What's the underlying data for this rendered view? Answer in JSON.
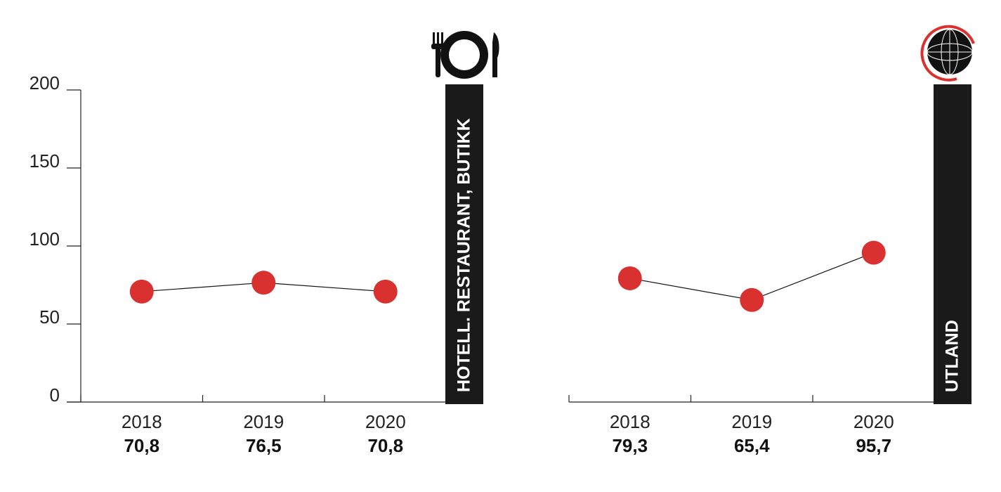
{
  "chart_data": [
    {
      "type": "line",
      "title": "HOTELL. RESTAURANT, BUTIKK",
      "categories": [
        "2018",
        "2019",
        "2020"
      ],
      "values": [
        70.8,
        76.5,
        70.8
      ],
      "value_labels": [
        "70,8",
        "76,5",
        "70,8"
      ],
      "color": "#d93030",
      "ylim": [
        0,
        200
      ],
      "yticks": [
        0,
        50,
        100,
        150,
        200
      ]
    },
    {
      "type": "line",
      "title": "UTLAND",
      "categories": [
        "2018",
        "2019",
        "2020"
      ],
      "values": [
        79.3,
        65.4,
        95.7
      ],
      "value_labels": [
        "79,3",
        "65,4",
        "95,7"
      ],
      "color": "#d93030",
      "ylim": [
        0,
        200
      ]
    }
  ]
}
